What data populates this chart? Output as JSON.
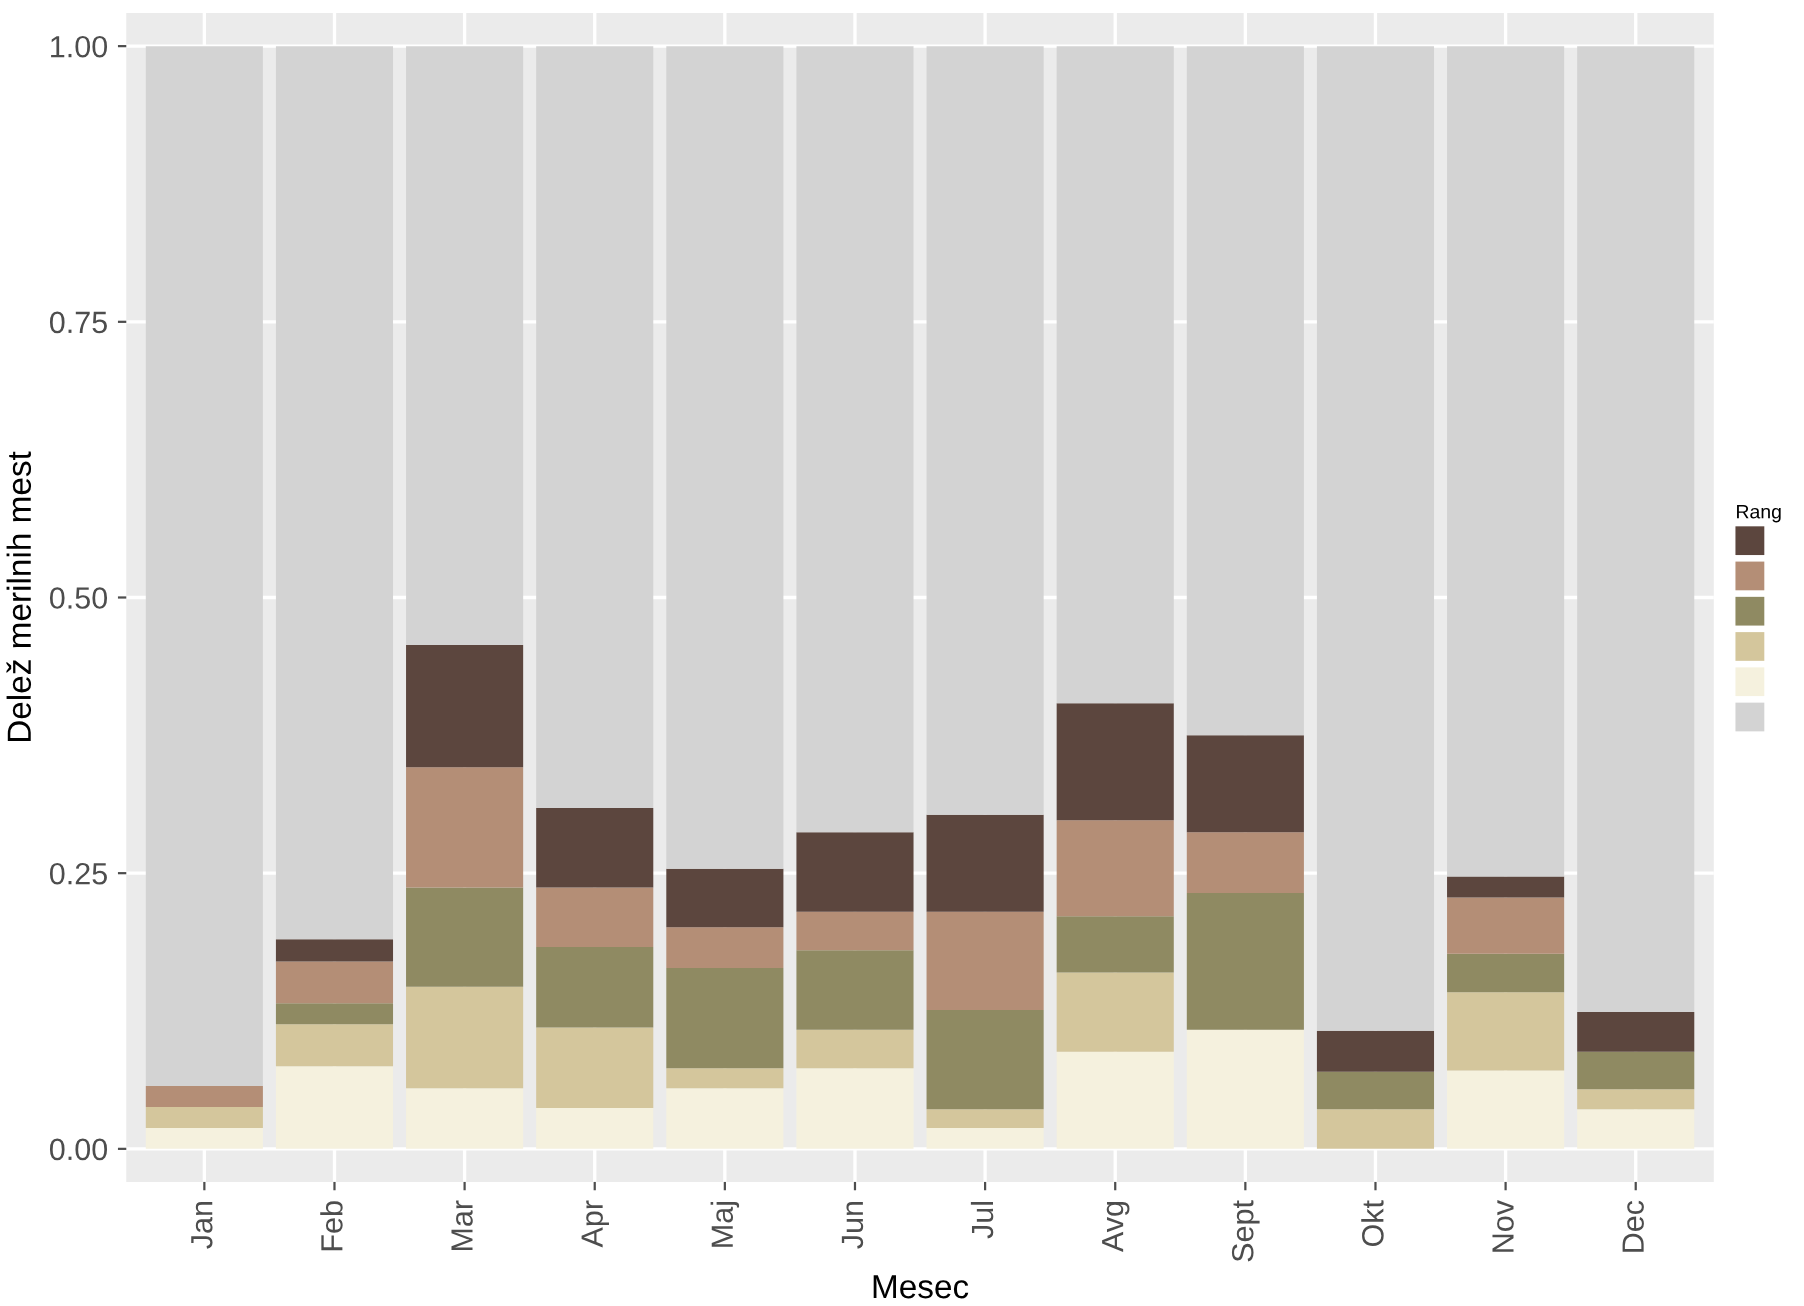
{
  "chart_data": {
    "type": "bar",
    "stacked": true,
    "xlabel": "Mesec",
    "ylabel": "Delež merilnih mest",
    "legend_title": "Rang",
    "grid": true,
    "categories": [
      "Jan",
      "Feb",
      "Mar",
      "Apr",
      "Maj",
      "Jun",
      "Jul",
      "Avg",
      "Sept",
      "Okt",
      "Nov",
      "Dec"
    ],
    "ylim": [
      -0.03,
      1.03
    ],
    "yticks": [
      {
        "value": 0,
        "label": "0.00"
      },
      {
        "value": 0.25,
        "label": "0.25"
      },
      {
        "value": 0.5,
        "label": "0.50"
      },
      {
        "value": 0.75,
        "label": "0.75"
      },
      {
        "value": 1,
        "label": "1.00"
      }
    ],
    "series": [
      {
        "color": "#f5f1de",
        "values": [
          0.019,
          0.075,
          0.055,
          0.037,
          0.055,
          0.073,
          0.019,
          0.088,
          0.108,
          0,
          0.071,
          0.036
        ]
      },
      {
        "color": "#d4c69c",
        "values": [
          0.019,
          0.038,
          0.092,
          0.073,
          0.018,
          0.035,
          0.017,
          0.072,
          0,
          0.036,
          0.071,
          0.018
        ]
      },
      {
        "color": "#8f8a62",
        "values": [
          0,
          0.019,
          0.09,
          0.073,
          0.091,
          0.072,
          0.09,
          0.051,
          0.124,
          0.034,
          0.035,
          0.034
        ]
      },
      {
        "color": "#b48e76",
        "values": [
          0.019,
          0.038,
          0.109,
          0.054,
          0.037,
          0.035,
          0.089,
          0.087,
          0.055,
          0,
          0.051,
          0
        ]
      },
      {
        "color": "#5c463e",
        "values": [
          0,
          0.02,
          0.111,
          0.072,
          0.053,
          0.072,
          0.088,
          0.106,
          0.088,
          0.037,
          0.019,
          0.036
        ]
      },
      {
        "color": "#d3d3d3",
        "values": [
          0.943,
          0.81,
          0.543,
          0.691,
          0.746,
          0.713,
          0.697,
          0.596,
          0.625,
          0.893,
          0.753,
          0.876
        ]
      }
    ]
  }
}
